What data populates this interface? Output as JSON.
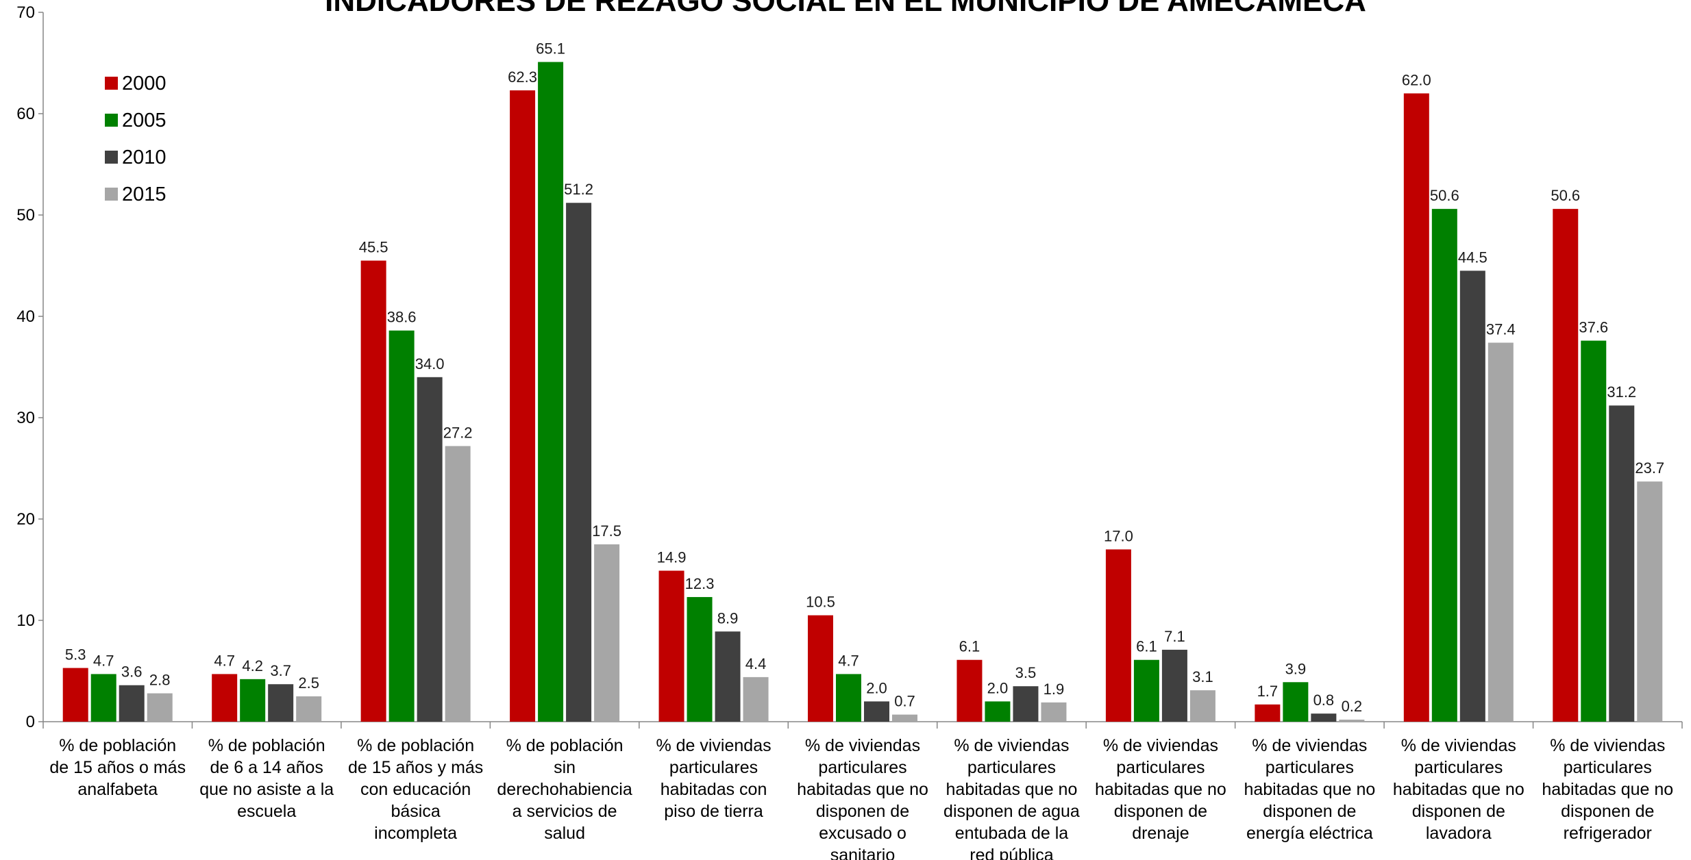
{
  "chart_data": {
    "type": "bar",
    "title": "INDICADORES DE REZAGO SOCIAL EN EL MUNICIPIO DE AMECAMECA",
    "xlabel": "",
    "ylabel": "",
    "ylim": [
      0,
      70
    ],
    "yticks": [
      0,
      10,
      20,
      30,
      40,
      50,
      60,
      70
    ],
    "grid": false,
    "legend_position": "top-left",
    "categories": [
      "% de población de 15 años o más analfabeta",
      "% de población de 6 a 14 años que no asiste a la escuela",
      "% de población de 15 años y más con educación básica incompleta",
      "% de población sin derechohabiencia a servicios de salud",
      "% de viviendas particulares habitadas con piso de tierra",
      "% de viviendas particulares habitadas que no disponen de excusado o sanitario",
      "% de viviendas particulares habitadas que no disponen de agua entubada de la red pública",
      "% de viviendas particulares habitadas que no disponen de drenaje",
      "% de viviendas particulares habitadas que no disponen de energía eléctrica",
      "% de viviendas particulares habitadas que no disponen de lavadora",
      "% de viviendas particulares habitadas que no disponen de refrigerador"
    ],
    "category_label_lines": [
      [
        "% de población",
        "de 15 años o más",
        "analfabeta"
      ],
      [
        "% de población",
        "de 6 a 14 años",
        "que no asiste a la",
        "escuela"
      ],
      [
        "% de población",
        "de 15 años y más",
        "con educación",
        "básica",
        "incompleta"
      ],
      [
        "% de población",
        "sin",
        "derechohabiencia",
        "a servicios de",
        "salud"
      ],
      [
        "% de viviendas",
        "particulares",
        "habitadas con",
        "piso de tierra"
      ],
      [
        "% de viviendas",
        "particulares",
        "habitadas que no",
        "disponen de",
        "excusado o",
        "sanitario"
      ],
      [
        "% de viviendas",
        "particulares",
        "habitadas que no",
        "disponen de agua",
        "entubada de la",
        "red pública"
      ],
      [
        "% de viviendas",
        "particulares",
        "habitadas que no",
        "disponen de",
        "drenaje"
      ],
      [
        "% de viviendas",
        "particulares",
        "habitadas que no",
        "disponen de",
        "energía eléctrica"
      ],
      [
        "% de viviendas",
        "particulares",
        "habitadas que no",
        "disponen de",
        "lavadora"
      ],
      [
        "% de viviendas",
        "particulares",
        "habitadas que no",
        "disponen de",
        "refrigerador"
      ]
    ],
    "series": [
      {
        "name": "2000",
        "color": "#c00000",
        "values": [
          5.3,
          4.7,
          45.5,
          62.3,
          14.9,
          10.5,
          6.1,
          17.0,
          1.7,
          62.0,
          50.6
        ]
      },
      {
        "name": "2005",
        "color": "#008000",
        "values": [
          4.7,
          4.2,
          38.6,
          65.1,
          12.3,
          4.7,
          2.0,
          6.1,
          3.9,
          50.6,
          37.6
        ]
      },
      {
        "name": "2010",
        "color": "#404040",
        "values": [
          3.6,
          3.7,
          34.0,
          51.2,
          8.9,
          2.0,
          3.5,
          7.1,
          0.8,
          44.5,
          31.2
        ]
      },
      {
        "name": "2015",
        "color": "#a6a6a6",
        "values": [
          2.8,
          2.5,
          27.2,
          17.5,
          4.4,
          0.7,
          1.9,
          3.1,
          0.2,
          37.4,
          23.7
        ]
      }
    ],
    "value_format_decimals": 1
  }
}
